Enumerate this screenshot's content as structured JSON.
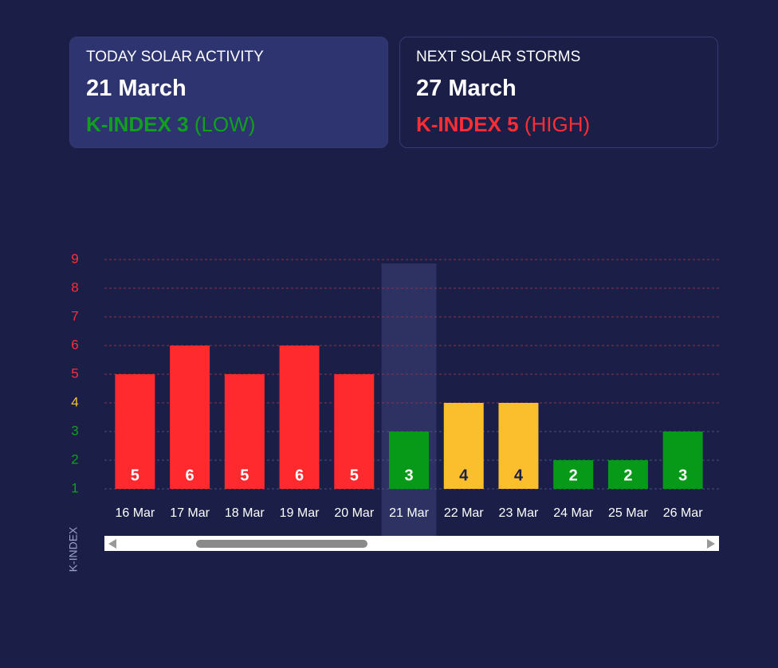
{
  "cards": [
    {
      "title": "TODAY SOLAR ACTIVITY",
      "date": "21 March",
      "index": "K-INDEX 3",
      "level": "(LOW)",
      "color": "#10a01e",
      "background": "#2e3470"
    },
    {
      "title": "NEXT SOLAR STORMS",
      "date": "27 March",
      "index": "K-INDEX 5",
      "level": "(HIGH)",
      "color": "#ff2e34",
      "background": "#1b1f47"
    }
  ],
  "chart_data": {
    "type": "bar",
    "y_label": "K-INDEX",
    "categories": [
      "16 Mar",
      "17 Mar",
      "18 Mar",
      "19 Mar",
      "20 Mar",
      "21 Mar",
      "22 Mar",
      "23 Mar",
      "24 Mar",
      "25 Mar",
      "26 Mar"
    ],
    "values": [
      5,
      6,
      5,
      6,
      5,
      3,
      4,
      4,
      2,
      2,
      3
    ],
    "colors": [
      "#ff2a2e",
      "#ff2a2e",
      "#ff2a2e",
      "#ff2a2e",
      "#ff2a2e",
      "#079a19",
      "#fbbf2e",
      "#fbbf2e",
      "#079a19",
      "#079a19",
      "#079a19"
    ],
    "value_label_colors": [
      "#ffffff",
      "#ffffff",
      "#ffffff",
      "#ffffff",
      "#ffffff",
      "#ffffff",
      "#1b1f47",
      "#1b1f47",
      "#ffffff",
      "#ffffff",
      "#ffffff"
    ],
    "highlight_index": 5,
    "ylim": [
      1,
      9
    ],
    "yticks": [
      1,
      2,
      3,
      4,
      5,
      6,
      7,
      8,
      9
    ],
    "ytick_colors": [
      "#10a01e",
      "#10a01e",
      "#10a01e",
      "#fbbf2e",
      "#ff2e34",
      "#ff2e34",
      "#ff2e34",
      "#ff2e34",
      "#ff2e34"
    ],
    "grid": true
  }
}
